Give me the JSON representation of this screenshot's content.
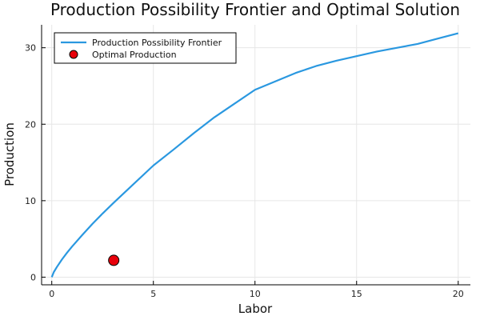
{
  "chart_data": {
    "type": "line",
    "title": "Production Possibility Frontier and Optimal Solution",
    "xlabel": "Labor",
    "ylabel": "Production",
    "xlim": [
      -0.5,
      20.6
    ],
    "ylim": [
      -1,
      33
    ],
    "xticks": [
      0,
      5,
      10,
      15,
      20
    ],
    "yticks": [
      0,
      10,
      20,
      30
    ],
    "grid": true,
    "legend_position": "top-left",
    "series": [
      {
        "name": "Production Possibility Frontier",
        "kind": "line",
        "color": "#2a98e0",
        "x": [
          0,
          0.1,
          0.25,
          0.5,
          0.75,
          1,
          1.5,
          2,
          2.5,
          3,
          4,
          5,
          6,
          7,
          8,
          9,
          10,
          11,
          12,
          13,
          14,
          15,
          16,
          17,
          18,
          19,
          20
        ],
        "y": [
          0,
          0.66,
          1.32,
          2.31,
          3.19,
          4.0,
          5.51,
          6.96,
          8.32,
          9.61,
          12.11,
          14.6,
          16.7,
          18.85,
          20.9,
          22.7,
          24.5,
          25.6,
          26.7,
          27.6,
          28.3,
          28.9,
          29.5,
          30.0,
          30.5,
          31.2,
          31.9
        ]
      },
      {
        "name": "Optimal Production",
        "kind": "scatter",
        "color": "#e8000b",
        "x": [
          3.05
        ],
        "y": [
          2.2
        ]
      }
    ]
  }
}
